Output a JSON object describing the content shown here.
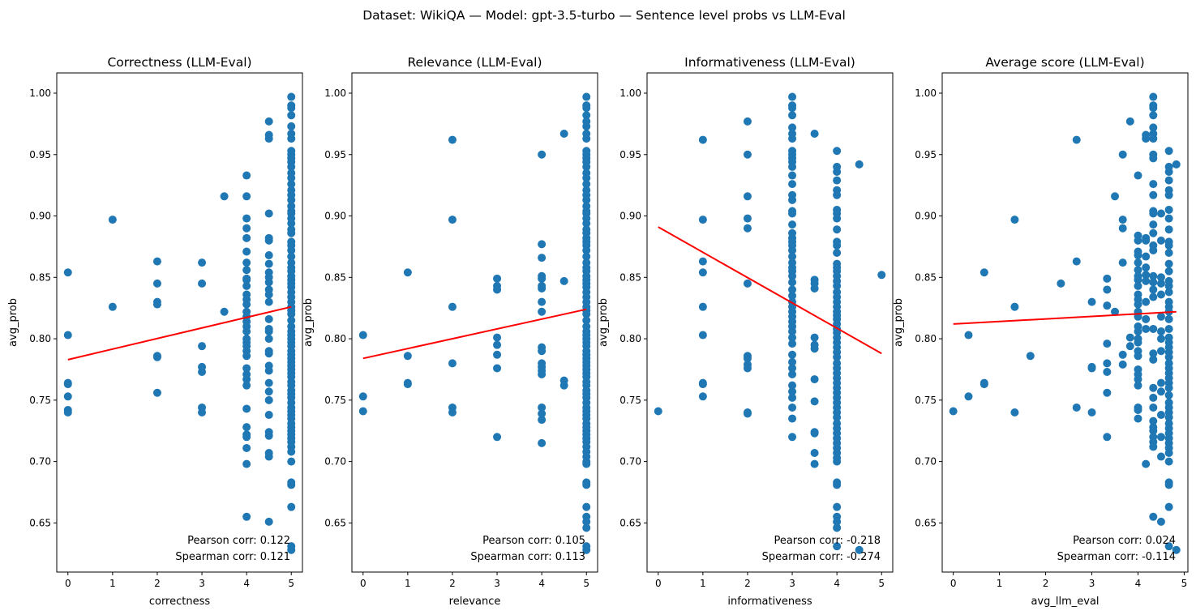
{
  "suptitle": "Dataset: WikiQA — Model: gpt-3.5-turbo — Sentence level probs vs LLM-Eval",
  "colors": {
    "points": "#1f77b4",
    "fit_line": "#ff0000"
  },
  "chart_data": [
    {
      "type": "scatter",
      "title": "Correctness (LLM-Eval)",
      "xlabel": "correctness",
      "ylabel": "avg_prob",
      "xlim": [
        -0.25,
        5.25
      ],
      "ylim": [
        0.61,
        1.0165
      ],
      "xticks": [
        "0",
        "1",
        "2",
        "3",
        "4",
        "5"
      ],
      "yticks": [
        "0.65",
        "0.70",
        "0.75",
        "0.80",
        "0.85",
        "0.90",
        "0.95",
        "1.00"
      ],
      "fit_line": {
        "x": [
          0,
          5
        ],
        "y": [
          0.783,
          0.826
        ]
      },
      "pearson": "Pearson corr: 0.122",
      "spearman": "Spearman corr: 0.121",
      "columns": [
        {
          "x": 0,
          "y": [
            0.854,
            0.803,
            0.764,
            0.763,
            0.753,
            0.742,
            0.74
          ]
        },
        {
          "x": 1,
          "y": [
            0.897,
            0.826
          ]
        },
        {
          "x": 2,
          "y": [
            0.863,
            0.845,
            0.83,
            0.828,
            0.786,
            0.785,
            0.756
          ]
        },
        {
          "x": 3,
          "y": [
            0.862,
            0.845,
            0.794,
            0.777,
            0.773,
            0.744,
            0.74
          ]
        },
        {
          "x": 3.5,
          "y": [
            0.916,
            0.822
          ]
        },
        {
          "x": 4,
          "y": [
            0.933,
            0.916,
            0.898,
            0.89,
            0.882,
            0.871,
            0.862,
            0.856,
            0.849,
            0.848,
            0.843,
            0.836,
            0.832,
            0.828,
            0.822,
            0.818,
            0.814,
            0.81,
            0.806,
            0.8,
            0.797,
            0.794,
            0.79,
            0.786,
            0.776,
            0.771,
            0.767,
            0.762,
            0.743,
            0.728,
            0.722,
            0.72,
            0.711,
            0.698,
            0.655
          ]
        },
        {
          "x": 4.5,
          "y": [
            0.977,
            0.966,
            0.963,
            0.902,
            0.882,
            0.88,
            0.868,
            0.861,
            0.854,
            0.85,
            0.846,
            0.84,
            0.836,
            0.83,
            0.816,
            0.808,
            0.806,
            0.8,
            0.79,
            0.788,
            0.778,
            0.774,
            0.764,
            0.757,
            0.75,
            0.738,
            0.724,
            0.721,
            0.707,
            0.704,
            0.651
          ]
        },
        {
          "x": 5,
          "y": [
            0.997,
            0.99,
            0.988,
            0.982,
            0.973,
            0.967,
            0.963,
            0.953,
            0.95,
            0.947,
            0.944,
            0.94,
            0.935,
            0.931,
            0.926,
            0.921,
            0.917,
            0.913,
            0.908,
            0.904,
            0.902,
            0.898,
            0.894,
            0.889,
            0.886,
            0.879,
            0.876,
            0.872,
            0.867,
            0.862,
            0.858,
            0.855,
            0.851,
            0.848,
            0.845,
            0.842,
            0.838,
            0.834,
            0.83,
            0.826,
            0.823,
            0.82,
            0.815,
            0.81,
            0.806,
            0.803,
            0.8,
            0.797,
            0.794,
            0.79,
            0.787,
            0.784,
            0.781,
            0.778,
            0.775,
            0.772,
            0.769,
            0.765,
            0.762,
            0.758,
            0.755,
            0.752,
            0.748,
            0.744,
            0.741,
            0.738,
            0.735,
            0.731,
            0.728,
            0.725,
            0.722,
            0.719,
            0.716,
            0.712,
            0.708,
            0.7,
            0.683,
            0.681,
            0.663,
            0.631,
            0.628
          ]
        }
      ]
    },
    {
      "type": "scatter",
      "title": "Relevance (LLM-Eval)",
      "xlabel": "relevance",
      "ylabel": "avg_prob",
      "xlim": [
        -0.25,
        5.25
      ],
      "ylim": [
        0.61,
        1.0165
      ],
      "xticks": [
        "0",
        "1",
        "2",
        "3",
        "4",
        "5"
      ],
      "yticks": [
        "0.65",
        "0.70",
        "0.75",
        "0.80",
        "0.85",
        "0.90",
        "0.95",
        "1.00"
      ],
      "fit_line": {
        "x": [
          0,
          5
        ],
        "y": [
          0.784,
          0.824
        ]
      },
      "pearson": "Pearson corr: 0.105",
      "spearman": "Spearman corr: 0.113",
      "columns": [
        {
          "x": 0,
          "y": [
            0.803,
            0.753,
            0.741
          ]
        },
        {
          "x": 1,
          "y": [
            0.854,
            0.786,
            0.764,
            0.763
          ]
        },
        {
          "x": 2,
          "y": [
            0.962,
            0.897,
            0.826,
            0.78,
            0.744,
            0.74
          ]
        },
        {
          "x": 3,
          "y": [
            0.849,
            0.843,
            0.84,
            0.801,
            0.795,
            0.787,
            0.776,
            0.72
          ]
        },
        {
          "x": 4,
          "y": [
            0.95,
            0.877,
            0.866,
            0.851,
            0.849,
            0.843,
            0.841,
            0.83,
            0.822,
            0.793,
            0.79,
            0.78,
            0.777,
            0.774,
            0.771,
            0.744,
            0.739,
            0.734,
            0.715
          ]
        },
        {
          "x": 4.5,
          "y": [
            0.967,
            0.847,
            0.766,
            0.762
          ]
        },
        {
          "x": 5,
          "y": [
            0.997,
            0.99,
            0.988,
            0.982,
            0.977,
            0.973,
            0.967,
            0.963,
            0.953,
            0.95,
            0.947,
            0.944,
            0.94,
            0.935,
            0.931,
            0.926,
            0.921,
            0.917,
            0.913,
            0.908,
            0.904,
            0.902,
            0.898,
            0.894,
            0.889,
            0.886,
            0.882,
            0.879,
            0.876,
            0.872,
            0.867,
            0.862,
            0.858,
            0.855,
            0.851,
            0.848,
            0.845,
            0.842,
            0.838,
            0.834,
            0.83,
            0.826,
            0.823,
            0.82,
            0.815,
            0.81,
            0.806,
            0.803,
            0.8,
            0.797,
            0.794,
            0.79,
            0.787,
            0.784,
            0.781,
            0.778,
            0.775,
            0.772,
            0.769,
            0.765,
            0.762,
            0.758,
            0.755,
            0.752,
            0.748,
            0.744,
            0.741,
            0.738,
            0.735,
            0.731,
            0.728,
            0.725,
            0.722,
            0.719,
            0.716,
            0.712,
            0.708,
            0.704,
            0.7,
            0.698,
            0.683,
            0.681,
            0.663,
            0.655,
            0.651,
            0.646,
            0.631,
            0.628
          ]
        }
      ]
    },
    {
      "type": "scatter",
      "title": "Informativeness (LLM-Eval)",
      "xlabel": "informativeness",
      "ylabel": "avg_prob",
      "xlim": [
        -0.25,
        5.25
      ],
      "ylim": [
        0.61,
        1.0165
      ],
      "xticks": [
        "0",
        "1",
        "2",
        "3",
        "4",
        "5"
      ],
      "yticks": [
        "0.65",
        "0.70",
        "0.75",
        "0.80",
        "0.85",
        "0.90",
        "0.95",
        "1.00"
      ],
      "fit_line": {
        "x": [
          0,
          5
        ],
        "y": [
          0.891,
          0.788
        ]
      },
      "pearson": "Pearson corr: -0.218",
      "spearman": "Spearman corr: -0.274",
      "columns": [
        {
          "x": 0,
          "y": [
            0.741
          ]
        },
        {
          "x": 1,
          "y": [
            0.962,
            0.897,
            0.863,
            0.854,
            0.826,
            0.803,
            0.764,
            0.763,
            0.753
          ]
        },
        {
          "x": 2,
          "y": [
            0.977,
            0.95,
            0.916,
            0.898,
            0.89,
            0.845,
            0.786,
            0.784,
            0.779,
            0.776,
            0.74,
            0.739
          ]
        },
        {
          "x": 3,
          "y": [
            0.997,
            0.99,
            0.988,
            0.982,
            0.972,
            0.967,
            0.963,
            0.953,
            0.95,
            0.947,
            0.944,
            0.94,
            0.933,
            0.926,
            0.917,
            0.913,
            0.904,
            0.902,
            0.893,
            0.886,
            0.882,
            0.879,
            0.876,
            0.872,
            0.867,
            0.862,
            0.858,
            0.855,
            0.851,
            0.846,
            0.84,
            0.835,
            0.83,
            0.826,
            0.822,
            0.818,
            0.814,
            0.81,
            0.806,
            0.801,
            0.796,
            0.787,
            0.781,
            0.776,
            0.771,
            0.762,
            0.757,
            0.752,
            0.744,
            0.735,
            0.72
          ]
        },
        {
          "x": 3.5,
          "y": [
            0.967,
            0.848,
            0.845,
            0.841,
            0.801,
            0.795,
            0.792,
            0.767,
            0.749,
            0.724,
            0.723,
            0.707,
            0.698
          ]
        },
        {
          "x": 4,
          "y": [
            0.953,
            0.94,
            0.936,
            0.929,
            0.921,
            0.917,
            0.905,
            0.902,
            0.898,
            0.889,
            0.879,
            0.876,
            0.87,
            0.861,
            0.858,
            0.855,
            0.851,
            0.847,
            0.843,
            0.838,
            0.834,
            0.83,
            0.826,
            0.822,
            0.819,
            0.816,
            0.812,
            0.808,
            0.805,
            0.801,
            0.797,
            0.793,
            0.789,
            0.785,
            0.78,
            0.776,
            0.772,
            0.768,
            0.764,
            0.76,
            0.756,
            0.752,
            0.748,
            0.744,
            0.74,
            0.736,
            0.731,
            0.727,
            0.723,
            0.719,
            0.715,
            0.711,
            0.707,
            0.703,
            0.7,
            0.683,
            0.681,
            0.663,
            0.655,
            0.651,
            0.646,
            0.631
          ]
        },
        {
          "x": 4.5,
          "y": [
            0.942,
            0.628
          ]
        },
        {
          "x": 5,
          "y": [
            0.852
          ]
        }
      ]
    },
    {
      "type": "scatter",
      "title": "Average score (LLM-Eval)",
      "xlabel": "avg_llm_eval",
      "ylabel": "avg_prob",
      "xlim": [
        -0.24,
        5.08
      ],
      "ylim": [
        0.61,
        1.0165
      ],
      "xticks": [
        "0",
        "1",
        "2",
        "3",
        "4",
        "5"
      ],
      "yticks": [
        "0.65",
        "0.70",
        "0.75",
        "0.80",
        "0.85",
        "0.90",
        "0.95",
        "1.00"
      ],
      "fit_line": {
        "x": [
          0,
          4.83
        ],
        "y": [
          0.812,
          0.822
        ]
      },
      "pearson": "Pearson corr: 0.024",
      "spearman": "Spearman corr: -0.114",
      "columns": [
        {
          "x": 0,
          "y": [
            0.741
          ]
        },
        {
          "x": 0.33,
          "y": [
            0.803,
            0.753
          ]
        },
        {
          "x": 0.67,
          "y": [
            0.854,
            0.764,
            0.763
          ]
        },
        {
          "x": 1.33,
          "y": [
            0.897,
            0.826,
            0.74
          ]
        },
        {
          "x": 1.67,
          "y": [
            0.786
          ]
        },
        {
          "x": 2.33,
          "y": [
            0.845
          ]
        },
        {
          "x": 2.67,
          "y": [
            0.962,
            0.863,
            0.744
          ]
        },
        {
          "x": 3,
          "y": [
            0.83,
            0.777,
            0.776,
            0.74
          ]
        },
        {
          "x": 3.33,
          "y": [
            0.849,
            0.84,
            0.827,
            0.796,
            0.78,
            0.773,
            0.756,
            0.72
          ]
        },
        {
          "x": 3.5,
          "y": [
            0.916,
            0.822
          ]
        },
        {
          "x": 3.67,
          "y": [
            0.95,
            0.897,
            0.89,
            0.862,
            0.787,
            0.779
          ]
        },
        {
          "x": 3.83,
          "y": [
            0.977,
            0.801,
            0.794
          ]
        },
        {
          "x": 4,
          "y": [
            0.933,
            0.884,
            0.88,
            0.871,
            0.868,
            0.862,
            0.856,
            0.851,
            0.848,
            0.843,
            0.836,
            0.832,
            0.828,
            0.822,
            0.818,
            0.81,
            0.806,
            0.8,
            0.797,
            0.79,
            0.786,
            0.775,
            0.771,
            0.767,
            0.762,
            0.744,
            0.742,
            0.735
          ]
        },
        {
          "x": 4.17,
          "y": [
            0.966,
            0.963,
            0.882,
            0.88,
            0.867,
            0.858,
            0.852,
            0.847,
            0.83,
            0.816,
            0.808,
            0.698
          ]
        },
        {
          "x": 4.33,
          "y": [
            0.997,
            0.99,
            0.988,
            0.982,
            0.972,
            0.967,
            0.963,
            0.95,
            0.947,
            0.926,
            0.917,
            0.904,
            0.902,
            0.893,
            0.886,
            0.876,
            0.872,
            0.851,
            0.846,
            0.84,
            0.834,
            0.808,
            0.788,
            0.783,
            0.76,
            0.752,
            0.744,
            0.733,
            0.728,
            0.725,
            0.72,
            0.716,
            0.712,
            0.655
          ]
        },
        {
          "x": 4.5,
          "y": [
            0.902,
            0.88,
            0.85,
            0.845,
            0.836,
            0.818,
            0.806,
            0.8,
            0.79,
            0.764,
            0.757,
            0.738,
            0.72,
            0.704,
            0.651
          ]
        },
        {
          "x": 4.67,
          "y": [
            0.953,
            0.94,
            0.936,
            0.929,
            0.921,
            0.917,
            0.905,
            0.898,
            0.889,
            0.879,
            0.876,
            0.87,
            0.861,
            0.855,
            0.847,
            0.843,
            0.838,
            0.83,
            0.826,
            0.822,
            0.816,
            0.808,
            0.801,
            0.797,
            0.793,
            0.789,
            0.785,
            0.78,
            0.776,
            0.772,
            0.768,
            0.764,
            0.76,
            0.754,
            0.748,
            0.744,
            0.74,
            0.736,
            0.731,
            0.727,
            0.723,
            0.719,
            0.715,
            0.711,
            0.707,
            0.7,
            0.683,
            0.681,
            0.663,
            0.631
          ]
        },
        {
          "x": 4.83,
          "y": [
            0.942,
            0.628
          ]
        }
      ]
    }
  ]
}
